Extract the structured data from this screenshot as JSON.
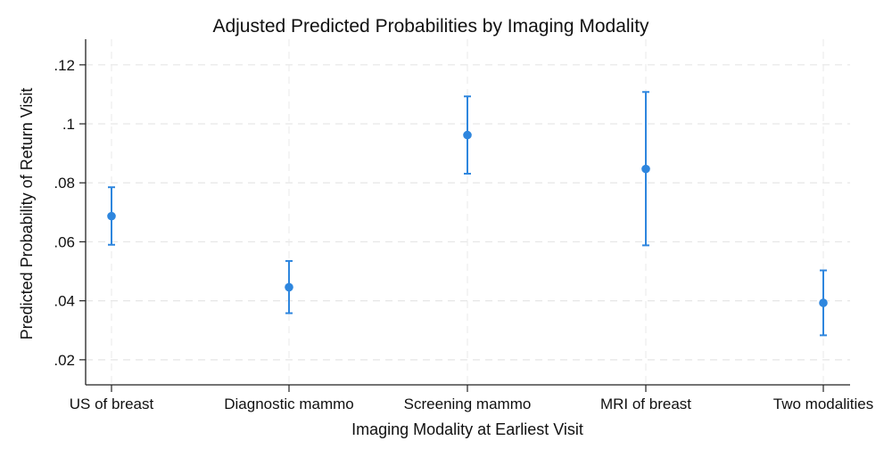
{
  "chart_data": {
    "type": "scatter",
    "subtype": "point-with-error-bars",
    "title": "Adjusted Predicted Probabilities by Imaging Modality",
    "xlabel": "Imaging Modality at Earliest Visit",
    "ylabel": "Predicted Probability of Return Visit",
    "categories": [
      "US of breast",
      "Diagnostic mammo",
      "Screening mammo",
      "MRI of breast",
      "Two modalities"
    ],
    "series": [
      {
        "name": "Predicted probability",
        "color": "#2E86DE",
        "values": [
          0.0687,
          0.0446,
          0.0962,
          0.0847,
          0.0393
        ],
        "ci_lower": [
          0.059,
          0.0358,
          0.0831,
          0.0588,
          0.0283
        ],
        "ci_upper": [
          0.0785,
          0.0535,
          0.1093,
          0.1108,
          0.0503
        ]
      }
    ],
    "yticks": [
      0.02,
      0.04,
      0.06,
      0.08,
      0.1,
      0.12
    ],
    "ytick_labels": [
      ".02",
      ".04",
      ".06",
      ".08",
      ".1",
      ".12"
    ],
    "ylim": [
      0.0115,
      0.1287
    ],
    "grid": true,
    "legend": "none"
  }
}
